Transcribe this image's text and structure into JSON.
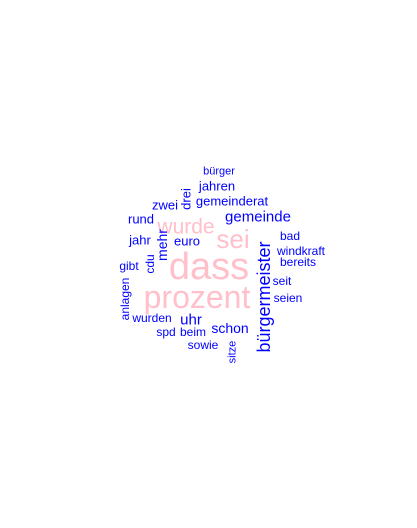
{
  "colors": {
    "high_freq": "#ffc0cb",
    "low_freq": "#0000ff",
    "background": "#ffffff"
  },
  "words": [
    {
      "id": "dass",
      "text": "dass",
      "color": "#ffc0cb"
    },
    {
      "id": "prozent",
      "text": "prozent",
      "color": "#ffc0cb"
    },
    {
      "id": "sei",
      "text": "sei",
      "color": "#ffc0cb"
    },
    {
      "id": "wurde",
      "text": "wurde",
      "color": "#ffc0cb"
    },
    {
      "id": "buergermeister",
      "text": "bürgermeister",
      "color": "#0000ff"
    },
    {
      "id": "gemeinde",
      "text": "gemeinde",
      "color": "#0000ff"
    },
    {
      "id": "uhr",
      "text": "uhr",
      "color": "#0000ff"
    },
    {
      "id": "schon",
      "text": "schon",
      "color": "#0000ff"
    },
    {
      "id": "mehr",
      "text": "mehr",
      "color": "#0000ff"
    },
    {
      "id": "jahren",
      "text": "jahren",
      "color": "#0000ff"
    },
    {
      "id": "gemeinderat",
      "text": "gemeinderat",
      "color": "#0000ff"
    },
    {
      "id": "zwei",
      "text": "zwei",
      "color": "#0000ff"
    },
    {
      "id": "drei",
      "text": "drei",
      "color": "#0000ff"
    },
    {
      "id": "rund",
      "text": "rund",
      "color": "#0000ff"
    },
    {
      "id": "jahr",
      "text": "jahr",
      "color": "#0000ff"
    },
    {
      "id": "euro",
      "text": "euro",
      "color": "#0000ff"
    },
    {
      "id": "cdu",
      "text": "cdu",
      "color": "#0000ff"
    },
    {
      "id": "gibt",
      "text": "gibt",
      "color": "#0000ff"
    },
    {
      "id": "windkraft",
      "text": "windkraft",
      "color": "#0000ff"
    },
    {
      "id": "bad",
      "text": "bad",
      "color": "#0000ff"
    },
    {
      "id": "bereits",
      "text": "bereits",
      "color": "#0000ff"
    },
    {
      "id": "seit",
      "text": "seit",
      "color": "#0000ff"
    },
    {
      "id": "seien",
      "text": "seien",
      "color": "#0000ff"
    },
    {
      "id": "anlagen",
      "text": "anlagen",
      "color": "#0000ff"
    },
    {
      "id": "wurden",
      "text": "wurden",
      "color": "#0000ff"
    },
    {
      "id": "spd",
      "text": "spd",
      "color": "#0000ff"
    },
    {
      "id": "beim",
      "text": "beim",
      "color": "#0000ff"
    },
    {
      "id": "sowie",
      "text": "sowie",
      "color": "#0000ff"
    },
    {
      "id": "sitze",
      "text": "sitze",
      "color": "#0000ff"
    },
    {
      "id": "buerger",
      "text": "bürger",
      "color": "#0000ff"
    }
  ]
}
